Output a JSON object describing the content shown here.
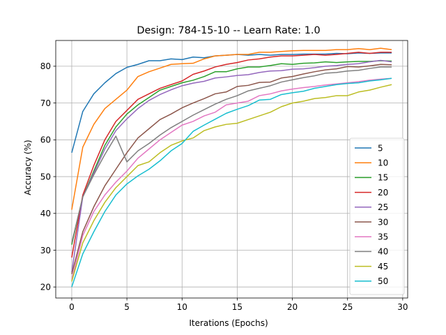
{
  "chart_data": {
    "type": "line",
    "title": "Design: 784-15-10 -- Learn Rate: 1.0",
    "xlabel": "Iterations (Epochs)",
    "ylabel": "Accuracy (%)",
    "xlim": [
      -1.45,
      30.45
    ],
    "ylim": [
      17,
      87
    ],
    "xticks": [
      0,
      5,
      10,
      15,
      20,
      25,
      30
    ],
    "yticks": [
      20,
      30,
      40,
      50,
      60,
      70,
      80
    ],
    "grid": true,
    "legend_position": "lower-right",
    "x": [
      0,
      1,
      2,
      3,
      4,
      5,
      6,
      7,
      8,
      9,
      10,
      11,
      12,
      13,
      14,
      15,
      16,
      17,
      18,
      19,
      20,
      21,
      22,
      23,
      24,
      25,
      26,
      27,
      28,
      29
    ],
    "series": [
      {
        "name": "5",
        "color": "#1f77b4",
        "values": [
          56.5,
          67.7,
          72.5,
          75.5,
          78.0,
          79.7,
          80.5,
          81.5,
          81.5,
          82.0,
          81.8,
          82.5,
          82.3,
          82.8,
          83.0,
          83.2,
          83.0,
          83.2,
          83.0,
          83.2,
          83.2,
          83.3,
          83.3,
          83.3,
          83.5,
          83.4,
          83.6,
          83.5,
          83.6,
          83.6
        ]
      },
      {
        "name": "10",
        "color": "#ff7f0e",
        "values": [
          41.0,
          58.0,
          64.2,
          68.5,
          71.0,
          73.5,
          77.2,
          78.5,
          79.5,
          80.5,
          80.7,
          80.8,
          82.0,
          82.8,
          83.0,
          83.2,
          83.2,
          83.8,
          83.8,
          84.0,
          84.2,
          84.3,
          84.3,
          84.3,
          84.5,
          84.5,
          84.8,
          84.5,
          84.9,
          84.5
        ]
      },
      {
        "name": "15",
        "color": "#2ca02c",
        "values": [
          31.5,
          44.5,
          51.5,
          58.5,
          63.5,
          67.0,
          69.5,
          71.5,
          73.5,
          74.5,
          75.5,
          76.2,
          77.2,
          78.5,
          78.5,
          79.3,
          79.8,
          79.8,
          80.2,
          80.7,
          80.5,
          80.8,
          80.9,
          81.2,
          81.0,
          81.2,
          81.3,
          81.3,
          81.5,
          81.4
        ]
      },
      {
        "name": "20",
        "color": "#d62728",
        "values": [
          28.0,
          45.0,
          53.0,
          60.0,
          65.0,
          68.0,
          71.0,
          72.5,
          74.0,
          75.0,
          76.0,
          77.8,
          78.7,
          79.8,
          80.5,
          81.0,
          81.7,
          82.0,
          82.5,
          82.8,
          82.8,
          83.0,
          83.2,
          83.0,
          83.2,
          83.5,
          83.8,
          83.5,
          83.8,
          83.8
        ]
      },
      {
        "name": "25",
        "color": "#9467bd",
        "values": [
          24.0,
          44.5,
          51.0,
          57.5,
          62.5,
          65.7,
          68.5,
          70.7,
          72.3,
          73.6,
          74.7,
          75.4,
          75.9,
          76.8,
          77.1,
          77.5,
          77.7,
          78.3,
          78.7,
          78.8,
          79.2,
          79.3,
          79.6,
          80.0,
          80.2,
          80.5,
          80.7,
          81.2,
          81.6,
          81.2
        ]
      },
      {
        "name": "30",
        "color": "#8c564b",
        "values": [
          23.5,
          35.0,
          41.8,
          47.5,
          52.0,
          56.5,
          60.5,
          63.0,
          65.5,
          67.0,
          68.7,
          70.0,
          71.2,
          72.5,
          73.0,
          74.5,
          74.8,
          75.6,
          75.7,
          76.8,
          77.2,
          77.9,
          78.5,
          79.0,
          79.3,
          79.9,
          79.8,
          80.1,
          80.5,
          80.4
        ]
      },
      {
        "name": "35",
        "color": "#e377c2",
        "values": [
          22.0,
          34.0,
          40.5,
          45.0,
          48.5,
          51.5,
          55.0,
          57.5,
          60.0,
          62.0,
          64.0,
          65.0,
          66.5,
          67.5,
          69.5,
          70.0,
          70.5,
          72.0,
          72.5,
          73.3,
          73.8,
          74.2,
          74.5,
          74.9,
          75.2,
          75.5,
          75.8,
          76.2,
          76.5,
          76.7
        ]
      },
      {
        "name": "40",
        "color": "#7f7f7f",
        "values": [
          32.0,
          44.5,
          50.5,
          56.0,
          61.0,
          54.0,
          57.0,
          59.0,
          61.3,
          63.3,
          65.0,
          66.7,
          68.2,
          69.7,
          71.0,
          72.0,
          73.3,
          74.0,
          74.7,
          75.7,
          76.3,
          76.9,
          77.4,
          78.1,
          78.3,
          78.7,
          78.9,
          79.4,
          79.8,
          79.8
        ]
      },
      {
        "name": "45",
        "color": "#bcbd22",
        "values": [
          21.5,
          32.0,
          38.0,
          43.0,
          47.0,
          50.0,
          53.0,
          54.0,
          56.5,
          58.5,
          59.7,
          60.5,
          62.5,
          63.5,
          64.2,
          64.5,
          65.5,
          66.5,
          67.5,
          69.0,
          70.0,
          70.5,
          71.2,
          71.5,
          72.0,
          72.0,
          73.0,
          73.5,
          74.3,
          75.0
        ]
      },
      {
        "name": "50",
        "color": "#17becf",
        "values": [
          20.0,
          29.0,
          35.0,
          40.5,
          45.0,
          48.0,
          50.2,
          52.0,
          54.3,
          57.0,
          59.0,
          62.3,
          64.0,
          65.6,
          67.2,
          68.3,
          69.3,
          70.8,
          71.0,
          72.3,
          72.8,
          73.2,
          74.0,
          74.5,
          75.0,
          75.3,
          75.5,
          76.0,
          76.3,
          76.7
        ]
      }
    ]
  }
}
